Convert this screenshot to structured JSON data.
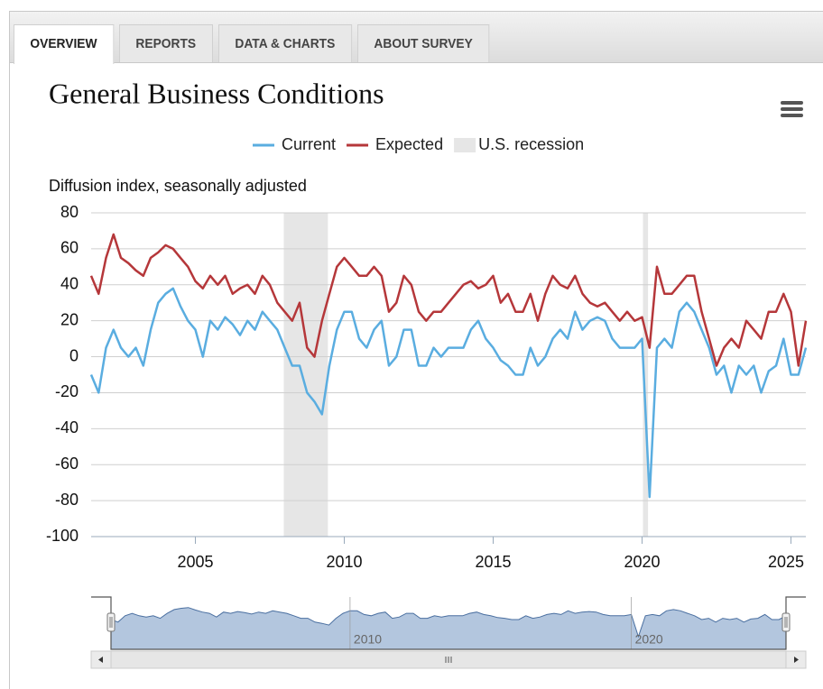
{
  "tabs": [
    "OVERVIEW",
    "REPORTS",
    "DATA & CHARTS",
    "ABOUT SURVEY"
  ],
  "active_tab": 0,
  "chart_data": {
    "type": "line",
    "title": "General Business Conditions",
    "y_axis_label": "Diffusion index, seasonally adjusted",
    "x": [
      2001.5,
      2001.75,
      2002,
      2002.25,
      2002.5,
      2002.75,
      2003,
      2003.25,
      2003.5,
      2003.75,
      2004,
      2004.25,
      2004.5,
      2004.75,
      2005,
      2005.25,
      2005.5,
      2005.75,
      2006,
      2006.25,
      2006.5,
      2006.75,
      2007,
      2007.25,
      2007.5,
      2007.75,
      2008,
      2008.25,
      2008.5,
      2008.75,
      2009,
      2009.25,
      2009.5,
      2009.75,
      2010,
      2010.25,
      2010.5,
      2010.75,
      2011,
      2011.25,
      2011.5,
      2011.75,
      2012,
      2012.25,
      2012.5,
      2012.75,
      2013,
      2013.25,
      2013.5,
      2013.75,
      2014,
      2014.25,
      2014.5,
      2014.75,
      2015,
      2015.25,
      2015.5,
      2015.75,
      2016,
      2016.25,
      2016.5,
      2016.75,
      2017,
      2017.25,
      2017.5,
      2017.75,
      2018,
      2018.25,
      2018.5,
      2018.75,
      2019,
      2019.25,
      2019.5,
      2019.75,
      2020,
      2020.25,
      2020.5,
      2020.75,
      2021,
      2021.25,
      2021.5,
      2021.75,
      2022,
      2022.25,
      2022.5,
      2022.75,
      2023,
      2023.25,
      2023.5,
      2023.75,
      2024,
      2024.25,
      2024.5,
      2024.75,
      2025,
      2025.25,
      2025.5
    ],
    "series": [
      {
        "name": "Current",
        "color": "#5aade0",
        "values": [
          -10,
          -20,
          5,
          15,
          5,
          0,
          5,
          -5,
          15,
          30,
          35,
          38,
          28,
          20,
          15,
          0,
          20,
          15,
          22,
          18,
          12,
          20,
          15,
          25,
          20,
          15,
          5,
          -5,
          -5,
          -20,
          -25,
          -32,
          -5,
          15,
          25,
          25,
          10,
          5,
          15,
          20,
          -5,
          0,
          15,
          15,
          -5,
          -5,
          5,
          0,
          5,
          5,
          5,
          15,
          20,
          10,
          5,
          -2,
          -5,
          -10,
          -10,
          5,
          -5,
          0,
          10,
          15,
          10,
          25,
          15,
          20,
          22,
          20,
          10,
          5,
          5,
          5,
          10,
          -78,
          5,
          10,
          5,
          25,
          30,
          25,
          15,
          5,
          -10,
          -5,
          -20,
          -5,
          -10,
          -5,
          -20,
          -8,
          -5,
          10,
          -10,
          -10,
          5
        ]
      },
      {
        "name": "Expected",
        "color": "#b5373a",
        "values": [
          45,
          35,
          55,
          68,
          55,
          52,
          48,
          45,
          55,
          58,
          62,
          60,
          55,
          50,
          42,
          38,
          45,
          40,
          45,
          35,
          38,
          40,
          35,
          45,
          40,
          30,
          25,
          20,
          30,
          5,
          0,
          20,
          35,
          50,
          55,
          50,
          45,
          45,
          50,
          45,
          25,
          30,
          45,
          40,
          25,
          20,
          25,
          25,
          30,
          35,
          40,
          42,
          38,
          40,
          45,
          30,
          35,
          25,
          25,
          35,
          20,
          35,
          45,
          40,
          38,
          45,
          35,
          30,
          28,
          30,
          25,
          20,
          25,
          20,
          22,
          5,
          50,
          35,
          35,
          40,
          45,
          45,
          25,
          10,
          -5,
          5,
          10,
          5,
          20,
          15,
          10,
          25,
          25,
          35,
          25,
          -5,
          20
        ]
      }
    ],
    "recessions": {
      "name": "U.S. recession",
      "color": "#e6e6e6",
      "ranges": [
        [
          2007.97,
          2009.45
        ],
        [
          2020.03,
          2020.2
        ]
      ]
    },
    "xlim": [
      2001.5,
      2025.5
    ],
    "xticks": [
      2005,
      2010,
      2015,
      2020,
      2025
    ],
    "ylim": [
      -100,
      80
    ],
    "yticks": [
      80,
      60,
      40,
      20,
      0,
      -20,
      -40,
      -60,
      -80,
      -100
    ],
    "grid": true,
    "legend": "top",
    "navigator_xticks": [
      2010,
      2020
    ]
  }
}
